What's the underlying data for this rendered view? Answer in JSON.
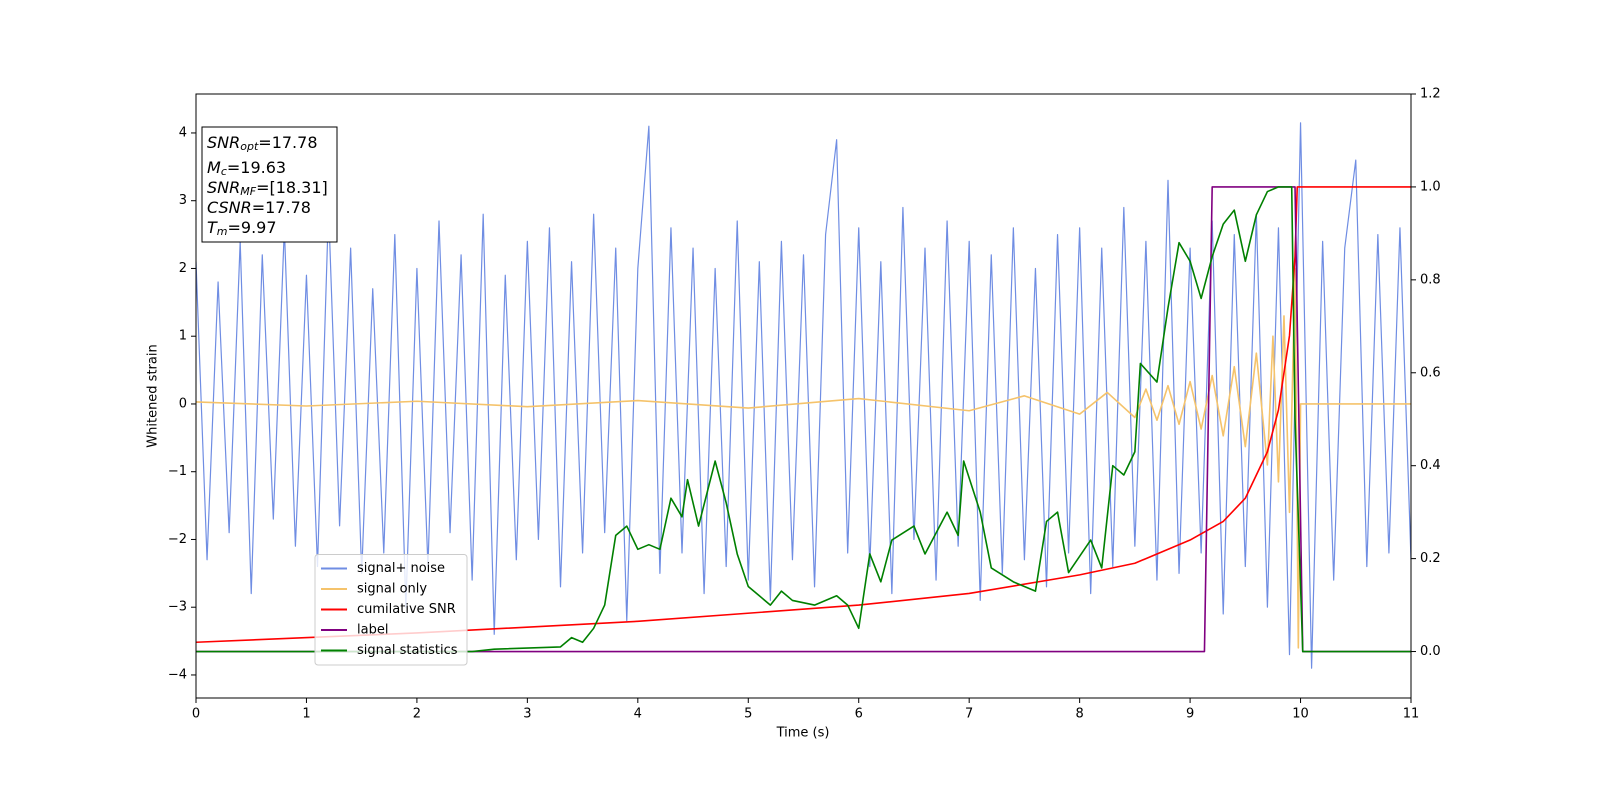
{
  "chart_data": {
    "type": "line",
    "xlabel": "Time (s)",
    "ylabel": "Whitened strain",
    "xlim": [
      0,
      11
    ],
    "xticks": [
      0,
      1,
      2,
      3,
      4,
      5,
      6,
      7,
      8,
      9,
      10,
      11
    ],
    "ylim": [
      -4.34,
      4.575
    ],
    "yticks": [
      {
        "value": -4,
        "label": "−4"
      },
      {
        "value": -3,
        "label": "−3"
      },
      {
        "value": -2,
        "label": "−2"
      },
      {
        "value": -1,
        "label": "−1"
      },
      0,
      1,
      2,
      3,
      4
    ],
    "y2lim": [
      -0.1,
      1.2
    ],
    "y2ticks": [
      {
        "value": 0,
        "label": "0.0"
      },
      0.2,
      0.4,
      0.6,
      0.8,
      {
        "value": 1,
        "label": "1.0"
      },
      1.2
    ],
    "legend": "lower left",
    "annotation": [
      {
        "text": "SNR",
        "sub": "opt",
        "rest": "=17.78"
      },
      {
        "text": "M",
        "sub": "c",
        "rest": "=19.63"
      },
      {
        "text": "SNR",
        "sub": "MF",
        "rest": "=[18.31]"
      },
      {
        "text": "CSNR",
        "rest": "=17.78"
      },
      {
        "text": "T",
        "sub": "m",
        "rest": "=9.97"
      }
    ],
    "series": [
      {
        "name": "signal+ noise",
        "color": "#6f8de3",
        "axis": "y",
        "x": [
          0,
          0.1,
          0.2,
          0.3,
          0.4,
          0.5,
          0.6,
          0.7,
          0.8,
          0.9,
          1,
          1.1,
          1.2,
          1.3,
          1.4,
          1.5,
          1.6,
          1.7,
          1.8,
          1.9,
          2,
          2.1,
          2.2,
          2.3,
          2.4,
          2.5,
          2.6,
          2.7,
          2.8,
          2.9,
          3,
          3.1,
          3.2,
          3.3,
          3.4,
          3.5,
          3.6,
          3.7,
          3.8,
          3.9,
          4,
          4.1,
          4.2,
          4.3,
          4.4,
          4.5,
          4.6,
          4.7,
          4.8,
          4.9,
          5,
          5.1,
          5.2,
          5.3,
          5.4,
          5.5,
          5.6,
          5.7,
          5.8,
          5.9,
          6,
          6.1,
          6.2,
          6.3,
          6.4,
          6.5,
          6.6,
          6.7,
          6.8,
          6.9,
          7,
          7.1,
          7.2,
          7.3,
          7.4,
          7.5,
          7.6,
          7.7,
          7.8,
          7.9,
          8,
          8.1,
          8.2,
          8.3,
          8.4,
          8.5,
          8.6,
          8.7,
          8.8,
          8.9,
          9,
          9.1,
          9.2,
          9.3,
          9.4,
          9.5,
          9.6,
          9.7,
          9.8,
          9.9,
          10,
          10.1,
          10.2,
          10.3,
          10.4,
          10.5,
          10.6,
          10.7,
          10.8,
          10.9,
          11
        ],
        "values": [
          2.1,
          -2.3,
          1.8,
          -1.9,
          2.4,
          -2.8,
          2.2,
          -1.7,
          2.6,
          -2.1,
          1.9,
          -2.4,
          2.9,
          -1.8,
          2.3,
          -2.5,
          1.7,
          -2.2,
          2.5,
          -3.0,
          2.0,
          -2.4,
          2.7,
          -1.9,
          2.2,
          -2.6,
          2.8,
          -3.4,
          1.9,
          -2.3,
          2.4,
          -2.0,
          2.6,
          -2.7,
          2.1,
          -2.2,
          2.8,
          -1.9,
          2.3,
          -3.2,
          2.0,
          4.1,
          -2.5,
          2.6,
          -2.2,
          2.3,
          -2.8,
          2.0,
          -2.4,
          2.7,
          -2.6,
          2.1,
          -2.9,
          2.4,
          -2.3,
          2.2,
          -2.7,
          2.5,
          3.9,
          -2.2,
          2.6,
          -2.4,
          2.1,
          -2.8,
          2.9,
          -2.0,
          2.3,
          -2.6,
          2.7,
          -2.1,
          2.4,
          -2.9,
          2.2,
          -2.5,
          2.6,
          -2.3,
          2.0,
          -2.7,
          2.5,
          -2.2,
          2.6,
          -2.8,
          2.3,
          -2.4,
          2.9,
          -2.1,
          2.4,
          -2.6,
          3.3,
          -2.5,
          2.3,
          -2.2,
          2.7,
          -3.1,
          2.5,
          -2.4,
          2.8,
          -3.0,
          2.6,
          -3.7,
          4.15,
          -3.9,
          2.4,
          -2.6,
          2.3,
          3.6,
          -2.4,
          2.5,
          -2.2,
          2.6,
          -2.3
        ]
      },
      {
        "name": "signal only",
        "color": "#f5c36b",
        "axis": "y",
        "x": [
          0,
          1,
          2,
          3,
          4,
          5,
          6,
          7,
          7.5,
          8,
          8.25,
          8.5,
          8.6,
          8.7,
          8.8,
          8.9,
          9.0,
          9.1,
          9.2,
          9.3,
          9.4,
          9.5,
          9.6,
          9.7,
          9.75,
          9.8,
          9.85,
          9.9,
          9.95,
          9.98,
          10.0,
          10.5,
          11
        ],
        "values": [
          0.03,
          -0.03,
          0.04,
          -0.04,
          0.05,
          -0.06,
          0.08,
          -0.1,
          0.12,
          -0.15,
          0.17,
          -0.2,
          0.22,
          -0.24,
          0.27,
          -0.3,
          0.33,
          -0.37,
          0.42,
          -0.47,
          0.55,
          -0.63,
          0.75,
          -0.9,
          1.0,
          -1.15,
          1.3,
          -1.6,
          2.0,
          -3.6,
          0,
          0,
          0
        ]
      },
      {
        "name": "cumilative SNR",
        "color": "#ff0000",
        "axis": "y2",
        "x": [
          0,
          2,
          4,
          6,
          7,
          8,
          8.5,
          9,
          9.3,
          9.5,
          9.7,
          9.8,
          9.9,
          9.95,
          9.97,
          11
        ],
        "values": [
          0.02,
          0.04,
          0.065,
          0.1,
          0.125,
          0.165,
          0.19,
          0.24,
          0.28,
          0.33,
          0.43,
          0.52,
          0.68,
          0.85,
          1.0,
          1.0
        ]
      },
      {
        "name": "label",
        "color": "#800080",
        "axis": "y2",
        "x": [
          0,
          9.13,
          9.2,
          9.95,
          10.02,
          11
        ],
        "values": [
          0,
          0,
          1,
          1,
          0,
          0
        ]
      },
      {
        "name": "signal statistics",
        "color": "#008000",
        "axis": "y2",
        "x": [
          0,
          2.5,
          2.7,
          3.3,
          3.4,
          3.5,
          3.6,
          3.7,
          3.8,
          3.9,
          4.0,
          4.1,
          4.2,
          4.3,
          4.4,
          4.45,
          4.55,
          4.7,
          4.8,
          4.9,
          5.0,
          5.1,
          5.2,
          5.3,
          5.4,
          5.6,
          5.8,
          5.9,
          6.0,
          6.1,
          6.2,
          6.3,
          6.5,
          6.6,
          6.8,
          6.9,
          6.95,
          7.1,
          7.2,
          7.4,
          7.6,
          7.7,
          7.8,
          7.9,
          8.1,
          8.2,
          8.3,
          8.4,
          8.5,
          8.55,
          8.7,
          8.8,
          8.9,
          9.0,
          9.1,
          9.2,
          9.3,
          9.4,
          9.5,
          9.6,
          9.7,
          9.8,
          9.92,
          9.95,
          10.02,
          11
        ],
        "values": [
          0,
          0,
          0.005,
          0.01,
          0.03,
          0.02,
          0.05,
          0.1,
          0.25,
          0.27,
          0.22,
          0.23,
          0.22,
          0.33,
          0.29,
          0.37,
          0.27,
          0.41,
          0.32,
          0.21,
          0.14,
          0.12,
          0.1,
          0.13,
          0.11,
          0.1,
          0.12,
          0.1,
          0.05,
          0.21,
          0.15,
          0.24,
          0.27,
          0.21,
          0.3,
          0.25,
          0.41,
          0.3,
          0.18,
          0.15,
          0.13,
          0.28,
          0.3,
          0.17,
          0.24,
          0.18,
          0.4,
          0.38,
          0.43,
          0.62,
          0.58,
          0.74,
          0.88,
          0.84,
          0.76,
          0.85,
          0.92,
          0.95,
          0.84,
          0.94,
          0.99,
          1.0,
          1.0,
          0.5,
          0,
          0
        ]
      }
    ]
  }
}
